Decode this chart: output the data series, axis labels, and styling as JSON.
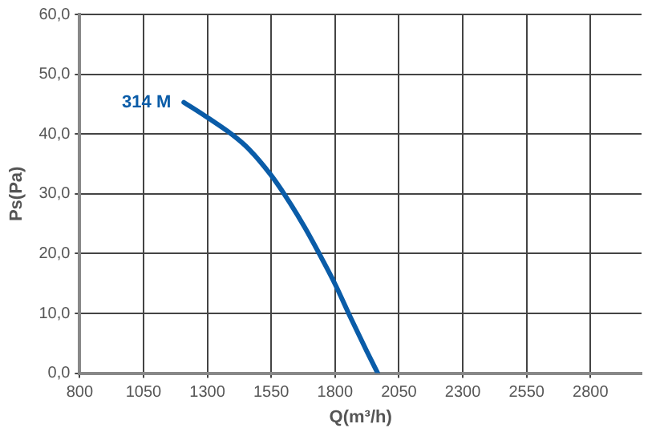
{
  "chart_data": {
    "type": "line",
    "xlabel": "Q(m³/h)",
    "ylabel": "Ps(Pa)",
    "xlim": [
      800,
      3000
    ],
    "xticks": [
      800,
      1050,
      1300,
      1550,
      1800,
      2050,
      2300,
      2550,
      2800
    ],
    "ylim": [
      0,
      60
    ],
    "yticks": [
      {
        "value": 0,
        "label": "0,0"
      },
      {
        "value": 10,
        "label": "10,0"
      },
      {
        "value": 20,
        "label": "20,0"
      },
      {
        "value": 30,
        "label": "30,0"
      },
      {
        "value": 40,
        "label": "40,0"
      },
      {
        "value": 50,
        "label": "50,0"
      },
      {
        "value": 60,
        "label": "60,0"
      }
    ],
    "grid": true,
    "legend": false,
    "marker": "none",
    "line_style": "solid",
    "series": [
      {
        "name": "314 M",
        "color": "#0a5ca8",
        "x": [
          1208,
          1306,
          1400,
          1462,
          1546,
          1608,
          1681,
          1754,
          1800,
          1862,
          1925,
          1967
        ],
        "values": [
          45.3,
          42.6,
          39.8,
          37.5,
          33.3,
          29.5,
          24.4,
          18.7,
          14.9,
          9.2,
          3.6,
          0
        ]
      }
    ]
  }
}
